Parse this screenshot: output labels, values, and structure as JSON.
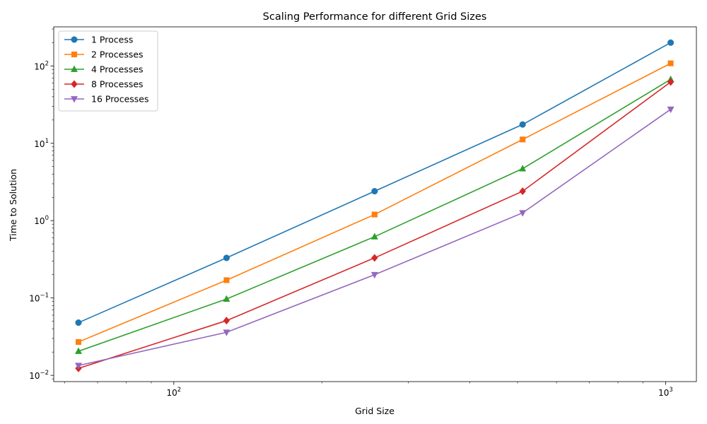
{
  "chart_data": {
    "type": "line",
    "title": "Scaling Performance for different Grid Sizes",
    "xlabel": "Grid Size",
    "ylabel": "Time to Solution",
    "xscale": "log",
    "yscale": "log",
    "xlim": [
      57,
      1155
    ],
    "ylim": [
      0.0083,
      320
    ],
    "grid": false,
    "legend": "top-left",
    "x": [
      64,
      128,
      256,
      512,
      1024
    ],
    "x_ticks": [
      {
        "value": 100,
        "base": "10",
        "exp": "2"
      },
      {
        "value": 1000,
        "base": "10",
        "exp": "3"
      }
    ],
    "y_ticks": [
      {
        "value": 0.01,
        "base": "10",
        "exp": "−2"
      },
      {
        "value": 0.1,
        "base": "10",
        "exp": "−1"
      },
      {
        "value": 1,
        "base": "10",
        "exp": "0"
      },
      {
        "value": 10,
        "base": "10",
        "exp": "1"
      },
      {
        "value": 100,
        "base": "10",
        "exp": "2"
      }
    ],
    "series": [
      {
        "name": "1 Process",
        "color": "#1f77b4",
        "marker": "circle",
        "values": [
          0.048,
          0.33,
          2.4,
          17.5,
          200
        ]
      },
      {
        "name": "2 Processes",
        "color": "#ff7f0e",
        "marker": "square",
        "values": [
          0.027,
          0.17,
          1.2,
          11.2,
          108
        ]
      },
      {
        "name": "4 Processes",
        "color": "#2ca02c",
        "marker": "triangle-up",
        "values": [
          0.0205,
          0.097,
          0.62,
          4.7,
          67
        ]
      },
      {
        "name": "8 Processes",
        "color": "#d62728",
        "marker": "diamond",
        "values": [
          0.0123,
          0.051,
          0.33,
          2.4,
          62
        ]
      },
      {
        "name": "16 Processes",
        "color": "#9467bd",
        "marker": "triangle-down",
        "values": [
          0.0134,
          0.036,
          0.2,
          1.26,
          27.5
        ]
      }
    ]
  }
}
